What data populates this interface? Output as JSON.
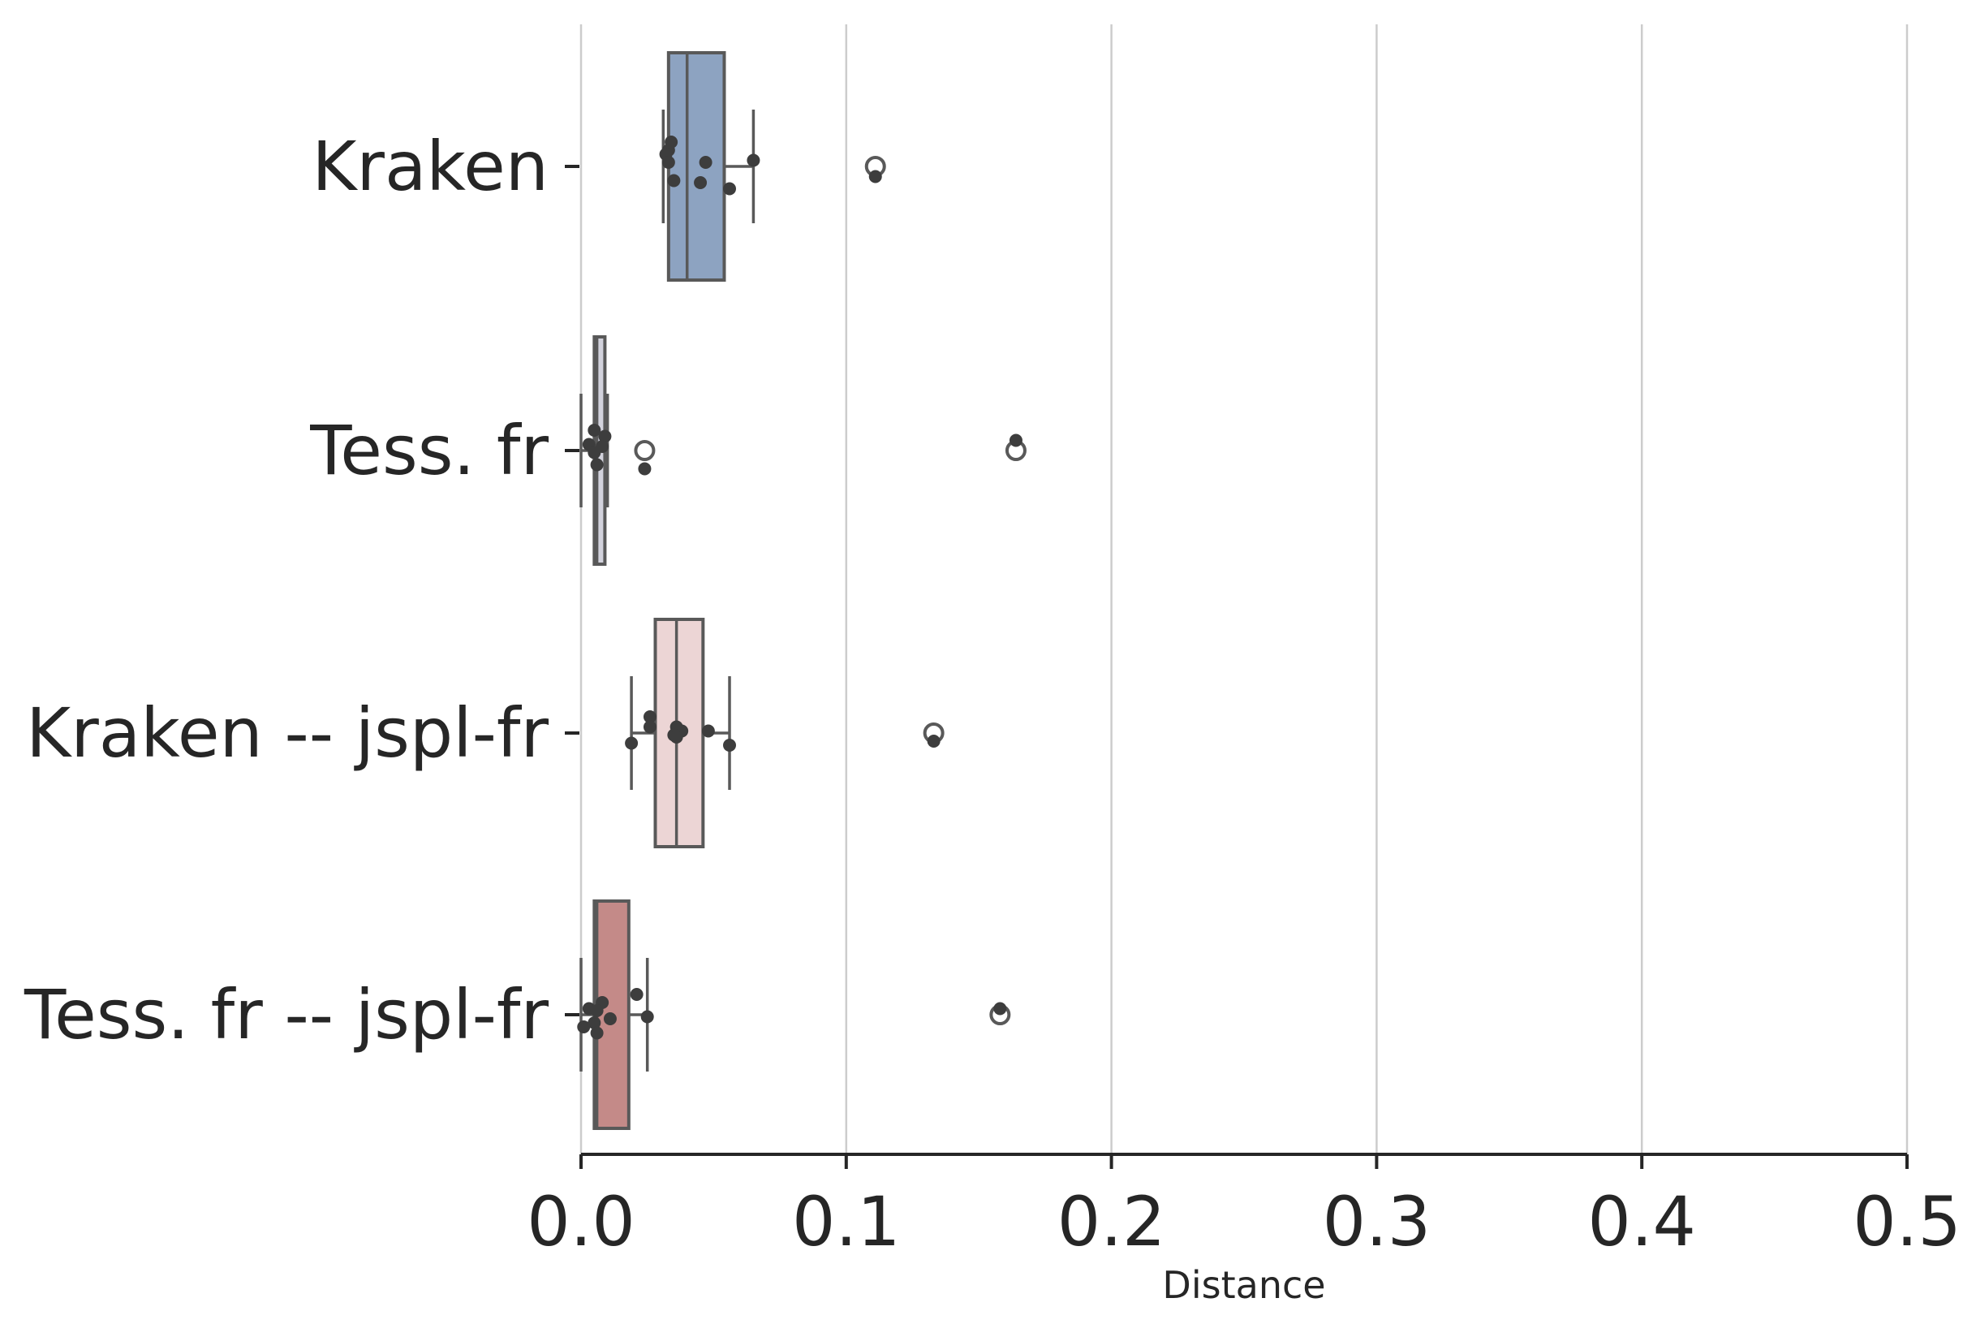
{
  "chart_data": {
    "type": "box",
    "title": "",
    "xlabel": "Distance",
    "ylabel": "",
    "xlim": [
      0.0,
      0.5
    ],
    "xticks": [
      "0.0",
      "0.1",
      "0.2",
      "0.3",
      "0.4",
      "0.5"
    ],
    "grid": "vertical",
    "orientation": "horizontal",
    "categories": [
      "Kraken",
      "Tess. fr",
      "Kraken -- jspl-fr",
      "Tess. fr -- jspl-fr"
    ],
    "colors": [
      "#8da3c1",
      "#d2d2dc",
      "#ecd5d5",
      "#c48a88"
    ],
    "series": [
      {
        "category": "Kraken",
        "whisker_low": 0.031,
        "q1": 0.033,
        "median": 0.04,
        "q3": 0.054,
        "whisker_high": 0.065,
        "outliers": [
          0.111
        ],
        "points": [
          [
            0.033,
            -0.08
          ],
          [
            0.034,
            -0.12
          ],
          [
            0.032,
            -0.06
          ],
          [
            0.033,
            -0.02
          ],
          [
            0.035,
            0.07
          ],
          [
            0.045,
            0.08
          ],
          [
            0.047,
            -0.02
          ],
          [
            0.056,
            0.11
          ],
          [
            0.065,
            -0.03
          ],
          [
            0.111,
            0.05
          ]
        ]
      },
      {
        "category": "Tess. fr",
        "whisker_low": 0.0,
        "q1": 0.005,
        "median": 0.006,
        "q3": 0.009,
        "whisker_high": 0.01,
        "outliers": [
          0.024,
          0.164
        ],
        "points": [
          [
            0.005,
            -0.1
          ],
          [
            0.009,
            -0.07
          ],
          [
            0.003,
            -0.03
          ],
          [
            0.008,
            -0.02
          ],
          [
            0.005,
            0.01
          ],
          [
            0.006,
            0.07
          ],
          [
            0.024,
            0.09
          ],
          [
            0.164,
            -0.05
          ]
        ]
      },
      {
        "category": "Kraken -- jspl-fr",
        "whisker_low": 0.019,
        "q1": 0.028,
        "median": 0.036,
        "q3": 0.046,
        "whisker_high": 0.056,
        "outliers": [
          0.133
        ],
        "points": [
          [
            0.026,
            -0.08
          ],
          [
            0.026,
            -0.03
          ],
          [
            0.036,
            -0.03
          ],
          [
            0.038,
            -0.01
          ],
          [
            0.035,
            0.01
          ],
          [
            0.036,
            0.02
          ],
          [
            0.048,
            -0.01
          ],
          [
            0.019,
            0.05
          ],
          [
            0.056,
            0.06
          ],
          [
            0.133,
            0.04
          ]
        ]
      },
      {
        "category": "Tess. fr -- jspl-fr",
        "whisker_low": 0.0,
        "q1": 0.005,
        "median": 0.006,
        "q3": 0.018,
        "whisker_high": 0.025,
        "outliers": [
          0.158
        ],
        "points": [
          [
            0.021,
            -0.1
          ],
          [
            0.008,
            -0.06
          ],
          [
            0.003,
            -0.03
          ],
          [
            0.006,
            -0.02
          ],
          [
            0.011,
            0.02
          ],
          [
            0.025,
            0.01
          ],
          [
            0.005,
            0.04
          ],
          [
            0.001,
            0.06
          ],
          [
            0.006,
            0.09
          ],
          [
            0.158,
            -0.03
          ]
        ]
      }
    ]
  }
}
